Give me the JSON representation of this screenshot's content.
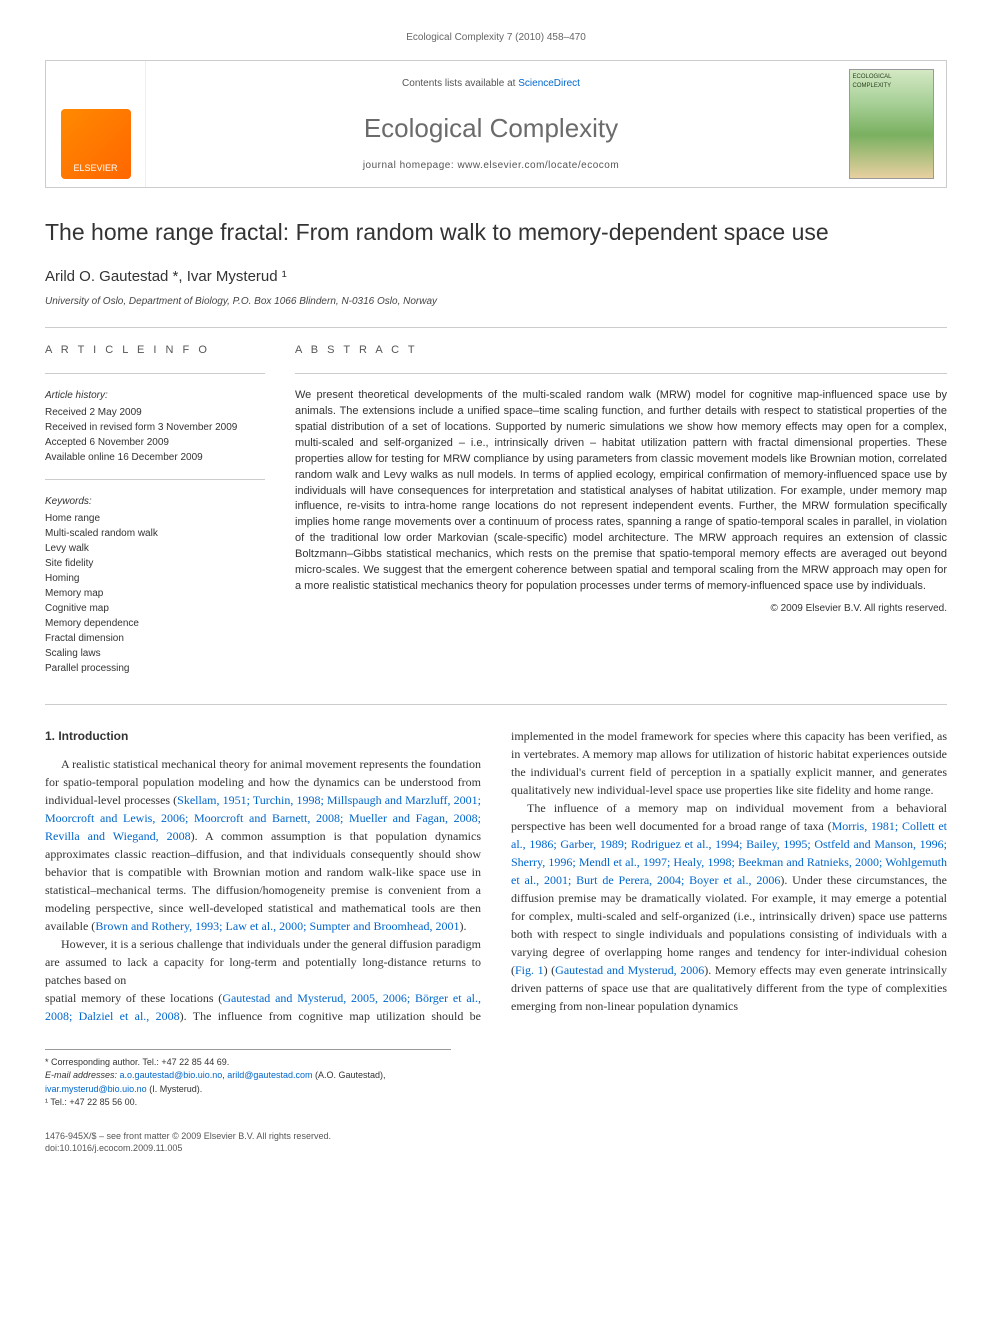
{
  "runningHeader": "Ecological Complexity 7 (2010) 458–470",
  "banner": {
    "publisher": "ELSEVIER",
    "contentsPrefix": "Contents lists available at",
    "contentsLink": "ScienceDirect",
    "journalTitle": "Ecological Complexity",
    "homepagePrefix": "journal homepage:",
    "homepageUrl": "www.elsevier.com/locate/ecocom",
    "coverLabel": "ECOLOGICAL COMPLEXITY"
  },
  "article": {
    "title": "The home range fractal: From random walk to memory-dependent space use",
    "authors": "Arild O. Gautestad *, Ivar Mysterud ¹",
    "affiliation": "University of Oslo, Department of Biology, P.O. Box 1066 Blindern, N-0316 Oslo, Norway"
  },
  "info": {
    "label": "A R T I C L E   I N F O",
    "historyHead": "Article history:",
    "history": "Received 2 May 2009\nReceived in revised form 3 November 2009\nAccepted 6 November 2009\nAvailable online 16 December 2009",
    "keywordsHead": "Keywords:",
    "keywords": "Home range\nMulti-scaled random walk\nLevy walk\nSite fidelity\nHoming\nMemory map\nCognitive map\nMemory dependence\nFractal dimension\nScaling laws\nParallel processing"
  },
  "abstract": {
    "label": "A B S T R A C T",
    "text": "We present theoretical developments of the multi-scaled random walk (MRW) model for cognitive map-influenced space use by animals. The extensions include a unified space–time scaling function, and further details with respect to statistical properties of the spatial distribution of a set of locations. Supported by numeric simulations we show how memory effects may open for a complex, multi-scaled and self-organized – i.e., intrinsically driven – habitat utilization pattern with fractal dimensional properties. These properties allow for testing for MRW compliance by using parameters from classic movement models like Brownian motion, correlated random walk and Levy walks as null models. In terms of applied ecology, empirical confirmation of memory-influenced space use by individuals will have consequences for interpretation and statistical analyses of habitat utilization. For example, under memory map influence, re-visits to intra-home range locations do not represent independent events. Further, the MRW formulation specifically implies home range movements over a continuum of process rates, spanning a range of spatio-temporal scales in parallel, in violation of the traditional low order Markovian (scale-specific) model architecture. The MRW approach requires an extension of classic Boltzmann–Gibbs statistical mechanics, which rests on the premise that spatio-temporal memory effects are averaged out beyond micro-scales. We suggest that the emergent coherence between spatial and temporal scaling from the MRW approach may open for a more realistic statistical mechanics theory for population processes under terms of memory-influenced space use by individuals.",
    "copyright": "© 2009 Elsevier B.V. All rights reserved."
  },
  "body": {
    "heading": "1. Introduction",
    "p1a": "A realistic statistical mechanical theory for animal movement represents the foundation for spatio-temporal population modeling and how the dynamics can be understood from individual-level processes (",
    "p1cite1": "Skellam, 1951; Turchin, 1998; Millspaugh and Marzluff, 2001; Moorcroft and Lewis, 2006; Moorcroft and Barnett, 2008; Mueller and Fagan, 2008; Revilla and Wiegand, 2008",
    "p1b": "). A common assumption is that population dynamics approximates classic reaction–diffusion, and that individuals consequently should show behavior that is compatible with Brownian motion and random walk-like space use in statistical–mechanical terms. The diffusion/homogeneity premise is convenient from a modeling perspective, since well-developed statistical and mathematical tools are then available (",
    "p1cite2": "Brown and Rothery, 1993; Law et al., 2000; Sumpter and Broomhead, 2001",
    "p1c": ").",
    "p2": "However, it is a serious challenge that individuals under the general diffusion paradigm are assumed to lack a capacity for long-term and potentially long-distance returns to patches based on",
    "p3a": "spatial memory of these locations (",
    "p3cite1": "Gautestad and Mysterud, 2005, 2006; Börger et al., 2008; Dalziel et al., 2008",
    "p3b": "). The influence from cognitive map utilization should be implemented in the model framework for species where this capacity has been verified, as in vertebrates. A memory map allows for utilization of historic habitat experiences outside the individual's current field of perception in a spatially explicit manner, and generates qualitatively new individual-level space use properties like site fidelity and home range.",
    "p4a": "The influence of a memory map on individual movement from a behavioral perspective has been well documented for a broad range of taxa (",
    "p4cite1": "Morris, 1981; Collett et al., 1986; Garber, 1989; Rodriguez et al., 1994; Bailey, 1995; Ostfeld and Manson, 1996; Sherry, 1996; Mendl et al., 1997; Healy, 1998; Beekman and Ratnieks, 2000; Wohlgemuth et al., 2001; Burt de Perera, 2004; Boyer et al., 2006",
    "p4b": "). Under these circumstances, the diffusion premise may be dramatically violated. For example, it may emerge a potential for complex, multi-scaled and self-organized (i.e., intrinsically driven) space use patterns both with respect to single individuals and populations consisting of individuals with a varying degree of overlapping home ranges and tendency for inter-individual cohesion (",
    "p4fig": "Fig. 1",
    "p4c": ") (",
    "p4cite2": "Gautestad and Mysterud, 2006",
    "p4d": "). Memory effects may even generate intrinsically driven patterns of space use that are qualitatively different from the type of complexities emerging from non-linear population dynamics"
  },
  "footnotes": {
    "corrLabel": "* Corresponding author.",
    "corrTel": "Tel.: +47 22 85 44 69.",
    "emailLabel": "E-mail addresses:",
    "email1": "a.o.gautestad@bio.uio.no",
    "email1alt": "arild@gautestad.com",
    "name1": "(A.O. Gautestad),",
    "email2": "ivar.mysterud@bio.uio.no",
    "name2": "(I. Mysterud).",
    "fn1": "¹ Tel.: +47 22 85 56 00."
  },
  "bottom": {
    "line1": "1476-945X/$ – see front matter © 2009 Elsevier B.V. All rights reserved.",
    "line2": "doi:10.1016/j.ecocom.2009.11.005"
  },
  "colors": {
    "link": "#0066cc",
    "text": "#333333",
    "border": "#cccccc"
  }
}
